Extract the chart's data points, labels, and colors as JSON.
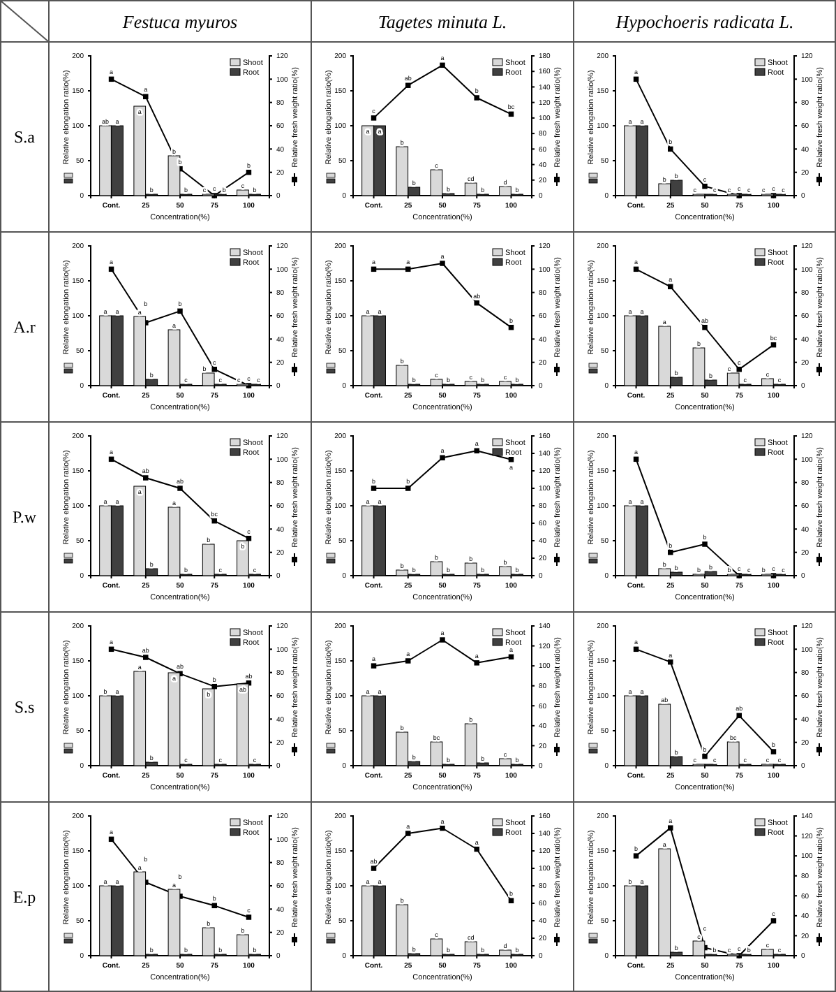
{
  "chart_data": [
    {
      "type": "bar",
      "title": "Festuca myuros",
      "annotations": [
        "S.a"
      ],
      "categories": [
        "Cont.",
        "25",
        "50",
        "75",
        "100"
      ],
      "xlabel": "Concentration(%)",
      "ylabel": "Relative elongation ratio(%)",
      "y2label": "Relative fresh weight ratio(%)",
      "ylim": [
        0,
        200
      ],
      "yticks": [
        0,
        50,
        100,
        150,
        200
      ],
      "y2lim": [
        0,
        120
      ],
      "y2ticks": [
        0,
        20,
        40,
        60,
        80,
        100,
        120
      ],
      "legend": "top right",
      "series": [
        {
          "name": "Shoot",
          "color": "#d9d9d9",
          "values": [
            100,
            128,
            57,
            0,
            8
          ],
          "value_labels": [
            "ab",
            "a",
            "b",
            "c",
            "c"
          ]
        },
        {
          "name": "Root",
          "color": "#404040",
          "values": [
            100,
            2,
            0,
            0,
            0
          ],
          "value_labels": [
            "a",
            "b",
            "b",
            "b",
            "b"
          ]
        },
        {
          "type": "line",
          "axis": "y2",
          "marker": "square",
          "color": "#000000",
          "values": [
            100,
            85,
            23,
            0,
            20
          ],
          "value_labels": [
            "a",
            "a",
            "b",
            "c",
            "b"
          ]
        }
      ]
    },
    {
      "type": "bar",
      "title": "Tagetes minuta L.",
      "categories": [
        "Cont.",
        "25",
        "50",
        "75",
        "100"
      ],
      "xlabel": "Concentration(%)",
      "ylabel": "Relative elongation ratio(%)",
      "y2label": "Relative fresh weight ratio(%)",
      "ylim": [
        0,
        200
      ],
      "yticks": [
        0,
        50,
        100,
        150,
        200
      ],
      "y2lim": [
        0,
        180
      ],
      "y2ticks": [
        0,
        20,
        40,
        60,
        80,
        100,
        120,
        140,
        160,
        180
      ],
      "legend": "top right",
      "series": [
        {
          "name": "Shoot",
          "color": "#d9d9d9",
          "values": [
            100,
            70,
            37,
            18,
            13
          ],
          "value_labels": [
            "a",
            "b",
            "c",
            "cd",
            "d"
          ]
        },
        {
          "name": "Root",
          "color": "#404040",
          "values": [
            100,
            12,
            3,
            0,
            2
          ],
          "value_labels": [
            "a",
            "b",
            "b",
            "b",
            "b"
          ]
        },
        {
          "type": "line",
          "axis": "y2",
          "marker": "square",
          "color": "#000000",
          "values": [
            100,
            142,
            168,
            126,
            105
          ],
          "value_labels": [
            "c",
            "ab",
            "a",
            "b",
            "bc"
          ]
        }
      ]
    },
    {
      "type": "bar",
      "title": "Hypochoeris radicata L.",
      "categories": [
        "Cont.",
        "25",
        "50",
        "75",
        "100"
      ],
      "xlabel": "Concentration(%)",
      "ylabel": "Relative elongation ratio(%)",
      "y2label": "Relative fresh weight ratio(%)",
      "ylim": [
        0,
        200
      ],
      "yticks": [
        0,
        50,
        100,
        150,
        200
      ],
      "y2lim": [
        0,
        120
      ],
      "y2ticks": [
        0,
        20,
        40,
        60,
        80,
        100,
        120
      ],
      "legend": "top right",
      "series": [
        {
          "name": "Shoot",
          "color": "#d9d9d9",
          "values": [
            100,
            17,
            0,
            0,
            0
          ],
          "value_labels": [
            "a",
            "b",
            "c",
            "c",
            "c"
          ]
        },
        {
          "name": "Root",
          "color": "#404040",
          "values": [
            100,
            22,
            2,
            0,
            0
          ],
          "value_labels": [
            "a",
            "b",
            "c",
            "c",
            "c"
          ]
        },
        {
          "type": "line",
          "axis": "y2",
          "marker": "square",
          "color": "#000000",
          "values": [
            100,
            40,
            8,
            0,
            0
          ],
          "value_labels": [
            "a",
            "b",
            "c",
            "c",
            "c"
          ]
        }
      ]
    },
    {
      "type": "bar",
      "annotations": [
        "A.r"
      ],
      "categories": [
        "Cont.",
        "25",
        "50",
        "75",
        "100"
      ],
      "xlabel": "Concentration(%)",
      "ylabel": "Relative elongation ratio(%)",
      "y2label": "Relative fresh weight ratio(%)",
      "ylim": [
        0,
        200
      ],
      "yticks": [
        0,
        50,
        100,
        150,
        200
      ],
      "y2lim": [
        0,
        120
      ],
      "y2ticks": [
        0,
        20,
        40,
        60,
        80,
        100,
        120
      ],
      "legend": "top right",
      "series": [
        {
          "name": "Shoot",
          "color": "#d9d9d9",
          "values": [
            100,
            99,
            80,
            18,
            0
          ],
          "value_labels": [
            "a",
            "a",
            "a",
            "b",
            "c"
          ]
        },
        {
          "name": "Root",
          "color": "#404040",
          "values": [
            100,
            9,
            0,
            0,
            0
          ],
          "value_labels": [
            "a",
            "b",
            "c",
            "c",
            "c"
          ]
        },
        {
          "type": "line",
          "axis": "y2",
          "marker": "square",
          "color": "#000000",
          "values": [
            100,
            54,
            64,
            14,
            0
          ],
          "value_labels": [
            "a",
            "b",
            "b",
            "c",
            "c"
          ]
        }
      ]
    },
    {
      "type": "bar",
      "categories": [
        "Cont.",
        "25",
        "50",
        "75",
        "100"
      ],
      "xlabel": "Concentration(%)",
      "ylabel": "Relative elongation ratio(%)",
      "y2label": "Relative fresh weight ratio(%)",
      "ylim": [
        0,
        200
      ],
      "yticks": [
        0,
        50,
        100,
        150,
        200
      ],
      "y2lim": [
        0,
        120
      ],
      "y2ticks": [
        0,
        20,
        40,
        60,
        80,
        100,
        120
      ],
      "legend": "top right",
      "series": [
        {
          "name": "Shoot",
          "color": "#d9d9d9",
          "values": [
            100,
            29,
            9,
            6,
            6
          ],
          "value_labels": [
            "a",
            "b",
            "c",
            "c",
            "c"
          ]
        },
        {
          "name": "Root",
          "color": "#404040",
          "values": [
            100,
            2,
            0,
            0,
            0
          ],
          "value_labels": [
            "a",
            "b",
            "b",
            "b",
            "b"
          ]
        },
        {
          "type": "line",
          "axis": "y2",
          "marker": "square",
          "color": "#000000",
          "values": [
            100,
            100,
            105,
            71,
            50
          ],
          "value_labels": [
            "a",
            "a",
            "a",
            "ab",
            "b"
          ]
        }
      ]
    },
    {
      "type": "bar",
      "categories": [
        "Cont.",
        "25",
        "50",
        "75",
        "100"
      ],
      "xlabel": "Concentration(%)",
      "ylabel": "Relative elongation ratio(%)",
      "y2label": "Relative fresh weight ratio(%)",
      "ylim": [
        0,
        200
      ],
      "yticks": [
        0,
        50,
        100,
        150,
        200
      ],
      "y2lim": [
        0,
        120
      ],
      "y2ticks": [
        0,
        20,
        40,
        60,
        80,
        100,
        120
      ],
      "legend": "top right",
      "series": [
        {
          "name": "Shoot",
          "color": "#d9d9d9",
          "values": [
            100,
            85,
            54,
            18,
            10
          ],
          "value_labels": [
            "a",
            "a",
            "b",
            "c",
            "c"
          ]
        },
        {
          "name": "Root",
          "color": "#404040",
          "values": [
            100,
            12,
            8,
            2,
            2
          ],
          "value_labels": [
            "a",
            "b",
            "b",
            "c",
            "c"
          ]
        },
        {
          "type": "line",
          "axis": "y2",
          "marker": "square",
          "color": "#000000",
          "values": [
            100,
            85,
            50,
            14,
            35
          ],
          "value_labels": [
            "a",
            "a",
            "ab",
            "c",
            "bc"
          ]
        }
      ]
    },
    {
      "type": "bar",
      "annotations": [
        "P.w"
      ],
      "categories": [
        "Cont.",
        "25",
        "50",
        "75",
        "100"
      ],
      "xlabel": "Concentration(%)",
      "ylabel": "Relative elongation ratio(%)",
      "y2label": "Relative fresh weight ratio(%)",
      "ylim": [
        0,
        200
      ],
      "yticks": [
        0,
        50,
        100,
        150,
        200
      ],
      "y2lim": [
        0,
        120
      ],
      "y2ticks": [
        0,
        20,
        40,
        60,
        80,
        100,
        120
      ],
      "legend": "top right",
      "series": [
        {
          "name": "Shoot",
          "color": "#d9d9d9",
          "values": [
            100,
            128,
            98,
            45,
            50
          ],
          "value_labels": [
            "a",
            "a",
            "a",
            "b",
            "b"
          ]
        },
        {
          "name": "Root",
          "color": "#404040",
          "values": [
            100,
            10,
            2,
            0,
            0
          ],
          "value_labels": [
            "a",
            "b",
            "b",
            "c",
            "c"
          ]
        },
        {
          "type": "line",
          "axis": "y2",
          "marker": "square",
          "color": "#000000",
          "values": [
            100,
            84,
            75,
            47,
            32
          ],
          "value_labels": [
            "a",
            "ab",
            "ab",
            "bc",
            "c"
          ]
        }
      ]
    },
    {
      "type": "bar",
      "categories": [
        "Cont.",
        "25",
        "50",
        "75",
        "100"
      ],
      "xlabel": "Concentration(%)",
      "ylabel": "Relative elongation ratio(%)",
      "y2label": "Relative fresh weight ratio(%)",
      "ylim": [
        0,
        200
      ],
      "yticks": [
        0,
        50,
        100,
        150,
        200
      ],
      "y2lim": [
        0,
        160
      ],
      "y2ticks": [
        0,
        20,
        40,
        60,
        80,
        100,
        120,
        140,
        160
      ],
      "legend": "top right",
      "series": [
        {
          "name": "Shoot",
          "color": "#d9d9d9",
          "values": [
            100,
            8,
            20,
            18,
            13
          ],
          "value_labels": [
            "a",
            "b",
            "b",
            "b",
            "b"
          ]
        },
        {
          "name": "Root",
          "color": "#404040",
          "values": [
            100,
            1,
            0,
            0,
            0
          ],
          "value_labels": [
            "a",
            "b",
            "b",
            "b",
            "b"
          ]
        },
        {
          "type": "line",
          "axis": "y2",
          "marker": "square",
          "color": "#000000",
          "values": [
            100,
            100,
            135,
            143,
            133
          ],
          "value_labels": [
            "b",
            "b",
            "a",
            "a",
            "a"
          ]
        }
      ]
    },
    {
      "type": "bar",
      "categories": [
        "Cont.",
        "25",
        "50",
        "75",
        "100"
      ],
      "xlabel": "Concentration(%)",
      "ylabel": "Relative elongation ratio(%)",
      "y2label": "Relative fresh weight ratio(%)",
      "ylim": [
        0,
        200
      ],
      "yticks": [
        0,
        50,
        100,
        150,
        200
      ],
      "y2lim": [
        0,
        120
      ],
      "y2ticks": [
        0,
        20,
        40,
        60,
        80,
        100,
        120
      ],
      "legend": "top right",
      "series": [
        {
          "name": "Shoot",
          "color": "#d9d9d9",
          "values": [
            100,
            10,
            0,
            0,
            0
          ],
          "value_labels": [
            "a",
            "b",
            "b",
            "b",
            "b"
          ]
        },
        {
          "name": "Root",
          "color": "#404040",
          "values": [
            100,
            5,
            6,
            0,
            0
          ],
          "value_labels": [
            "a",
            "b",
            "b",
            "c",
            "c"
          ]
        },
        {
          "type": "line",
          "axis": "y2",
          "marker": "square",
          "color": "#000000",
          "values": [
            100,
            20,
            27,
            0,
            0
          ],
          "value_labels": [
            "a",
            "b",
            "b",
            "c",
            "c"
          ]
        }
      ]
    },
    {
      "type": "bar",
      "annotations": [
        "S.s"
      ],
      "categories": [
        "Cont.",
        "25",
        "50",
        "75",
        "100"
      ],
      "xlabel": "Concentration(%)",
      "ylabel": "Relative elongation ratio(%)",
      "y2label": "Relative fresh weight ratio(%)",
      "ylim": [
        0,
        200
      ],
      "yticks": [
        0,
        50,
        100,
        150,
        200
      ],
      "y2lim": [
        0,
        120
      ],
      "y2ticks": [
        0,
        20,
        40,
        60,
        80,
        100,
        120
      ],
      "legend": "top right",
      "series": [
        {
          "name": "Shoot",
          "color": "#d9d9d9",
          "values": [
            100,
            135,
            133,
            110,
            117
          ],
          "value_labels": [
            "b",
            "a",
            "a",
            "b",
            "ab"
          ]
        },
        {
          "name": "Root",
          "color": "#404040",
          "values": [
            100,
            5,
            0,
            0,
            0
          ],
          "value_labels": [
            "a",
            "b",
            "c",
            "c",
            "c"
          ]
        },
        {
          "type": "line",
          "axis": "y2",
          "marker": "square",
          "color": "#000000",
          "values": [
            100,
            93,
            79,
            68,
            71
          ],
          "value_labels": [
            "a",
            "ab",
            "ab",
            "b",
            "ab"
          ]
        }
      ]
    },
    {
      "type": "bar",
      "categories": [
        "Cont.",
        "25",
        "50",
        "75",
        "100"
      ],
      "xlabel": "Concentration(%)",
      "ylabel": "Relative elongation ratio(%)",
      "y2label": "Relative fresh weight ratio(%)",
      "ylim": [
        0,
        200
      ],
      "yticks": [
        0,
        50,
        100,
        150,
        200
      ],
      "y2lim": [
        0,
        140
      ],
      "y2ticks": [
        0,
        20,
        40,
        60,
        80,
        100,
        120,
        140
      ],
      "legend": "top right",
      "series": [
        {
          "name": "Shoot",
          "color": "#d9d9d9",
          "values": [
            100,
            48,
            34,
            60,
            10
          ],
          "value_labels": [
            "a",
            "b",
            "bc",
            "b",
            "c"
          ]
        },
        {
          "name": "Root",
          "color": "#404040",
          "values": [
            100,
            6,
            1,
            4,
            0
          ],
          "value_labels": [
            "a",
            "b",
            "b",
            "b",
            "b"
          ]
        },
        {
          "type": "line",
          "axis": "y2",
          "marker": "square",
          "color": "#000000",
          "values": [
            100,
            105,
            126,
            103,
            109
          ],
          "value_labels": [
            "a",
            "a",
            "a",
            "a",
            "a"
          ]
        }
      ]
    },
    {
      "type": "bar",
      "categories": [
        "Cont.",
        "25",
        "50",
        "75",
        "100"
      ],
      "xlabel": "Concentration(%)",
      "ylabel": "Relative elongation ratio(%)",
      "y2label": "Relative fresh weight ratio(%)",
      "ylim": [
        0,
        200
      ],
      "yticks": [
        0,
        50,
        100,
        150,
        200
      ],
      "y2lim": [
        0,
        120
      ],
      "y2ticks": [
        0,
        20,
        40,
        60,
        80,
        100,
        120
      ],
      "legend": "top right",
      "series": [
        {
          "name": "Shoot",
          "color": "#d9d9d9",
          "values": [
            100,
            88,
            0,
            34,
            0
          ],
          "value_labels": [
            "a",
            "ab",
            "c",
            "bc",
            "c"
          ]
        },
        {
          "name": "Root",
          "color": "#404040",
          "values": [
            100,
            13,
            2,
            2,
            2
          ],
          "value_labels": [
            "a",
            "b",
            "c",
            "c",
            "c"
          ]
        },
        {
          "type": "line",
          "axis": "y2",
          "marker": "square",
          "color": "#000000",
          "values": [
            100,
            89,
            8,
            43,
            12
          ],
          "value_labels": [
            "a",
            "a",
            "b",
            "ab",
            "b"
          ]
        }
      ]
    },
    {
      "type": "bar",
      "annotations": [
        "E.p"
      ],
      "categories": [
        "Cont.",
        "25",
        "50",
        "75",
        "100"
      ],
      "xlabel": "Concentration(%)",
      "ylabel": "Relative elongation ratio(%)",
      "y2label": "Relative fresh weight ratio(%)",
      "ylim": [
        0,
        200
      ],
      "yticks": [
        0,
        50,
        100,
        150,
        200
      ],
      "y2lim": [
        0,
        120
      ],
      "y2ticks": [
        0,
        20,
        40,
        60,
        80,
        100,
        120
      ],
      "legend": "top right",
      "series": [
        {
          "name": "Shoot",
          "color": "#d9d9d9",
          "values": [
            100,
            120,
            95,
            40,
            30
          ],
          "value_labels": [
            "a",
            "a",
            "a",
            "b",
            "b"
          ]
        },
        {
          "name": "Root",
          "color": "#404040",
          "values": [
            100,
            0,
            0,
            0,
            0
          ],
          "value_labels": [
            "a",
            "b",
            "b",
            "b",
            "b"
          ]
        },
        {
          "type": "line",
          "axis": "y2",
          "marker": "square",
          "color": "#000000",
          "values": [
            100,
            63,
            51,
            43,
            33
          ],
          "value_labels": [
            "a",
            "b",
            "b",
            "b",
            "c"
          ]
        }
      ]
    },
    {
      "type": "bar",
      "categories": [
        "Cont.",
        "25",
        "50",
        "75",
        "100"
      ],
      "xlabel": "Concentration(%)",
      "ylabel": "Relative elongation ratio(%)",
      "y2label": "Relative fresh weight ratio(%)",
      "ylim": [
        0,
        200
      ],
      "yticks": [
        0,
        50,
        100,
        150,
        200
      ],
      "y2lim": [
        0,
        160
      ],
      "y2ticks": [
        0,
        20,
        40,
        60,
        80,
        100,
        120,
        140,
        160
      ],
      "legend": "top right",
      "series": [
        {
          "name": "Shoot",
          "color": "#d9d9d9",
          "values": [
            100,
            73,
            24,
            20,
            8
          ],
          "value_labels": [
            "a",
            "b",
            "c",
            "cd",
            "d"
          ]
        },
        {
          "name": "Root",
          "color": "#404040",
          "values": [
            100,
            3,
            0,
            0,
            0
          ],
          "value_labels": [
            "a",
            "b",
            "b",
            "b",
            "b"
          ]
        },
        {
          "type": "line",
          "axis": "y2",
          "marker": "square",
          "color": "#000000",
          "values": [
            100,
            140,
            146,
            122,
            63
          ],
          "value_labels": [
            "ab",
            "a",
            "a",
            "a",
            "b"
          ]
        }
      ]
    },
    {
      "type": "bar",
      "categories": [
        "Cont.",
        "25",
        "50",
        "75",
        "100"
      ],
      "xlabel": "Concentration(%)",
      "ylabel": "Relative elongation ratio(%)",
      "y2label": "Relative fresh weight ratio(%)",
      "ylim": [
        0,
        200
      ],
      "yticks": [
        0,
        50,
        100,
        150,
        200
      ],
      "y2lim": [
        0,
        140
      ],
      "y2ticks": [
        0,
        20,
        40,
        60,
        80,
        100,
        120,
        140
      ],
      "legend": "top right",
      "series": [
        {
          "name": "Shoot",
          "color": "#d9d9d9",
          "values": [
            100,
            153,
            21,
            0,
            9
          ],
          "value_labels": [
            "b",
            "a",
            "c",
            "c",
            "c"
          ]
        },
        {
          "name": "Root",
          "color": "#404040",
          "values": [
            100,
            5,
            2,
            0,
            0
          ],
          "value_labels": [
            "a",
            "b",
            "b",
            "b",
            "c"
          ]
        },
        {
          "type": "line",
          "axis": "y2",
          "marker": "square",
          "color": "#000000",
          "values": [
            100,
            128,
            8,
            0,
            35
          ],
          "value_labels": [
            "b",
            "a",
            "c",
            "c",
            "c"
          ]
        }
      ]
    }
  ]
}
